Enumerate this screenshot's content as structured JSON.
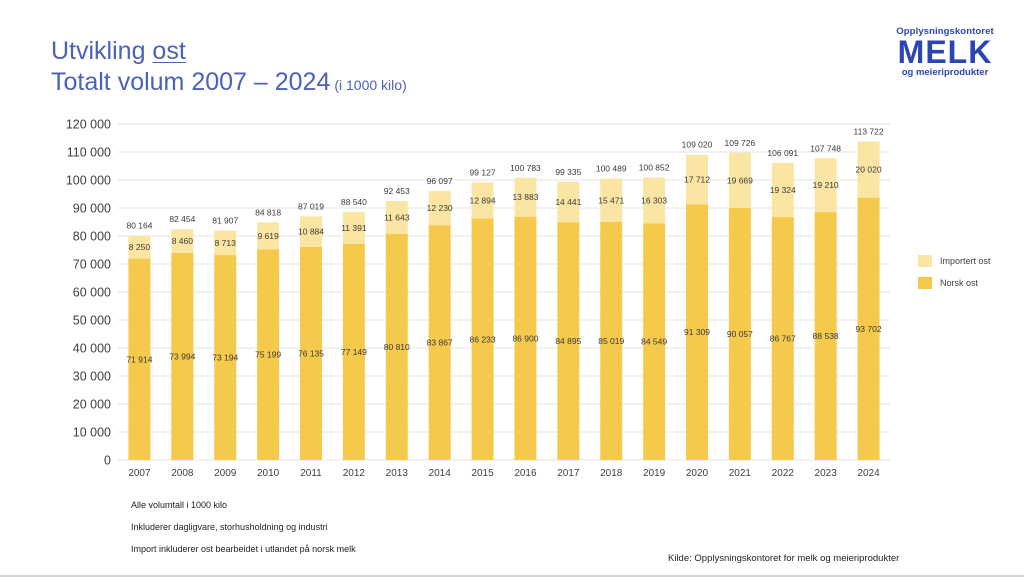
{
  "header": {
    "title_line1_prefix": "Utvikling ",
    "title_line1_underlined": "ost",
    "title_line2": "Totalt volum 2007 – 2024",
    "title_unit": "(i 1000 kilo)"
  },
  "logo": {
    "top": "Opplysningskontoret",
    "main": "MELK",
    "bottom": "og meieriprodukter"
  },
  "colors": {
    "title": "#4a62b8",
    "logo": "#2b46b3",
    "norsk": "#f5c94b",
    "importert": "#fbe5a3",
    "grid": "#e3e3e3",
    "text": "#404040"
  },
  "legend": {
    "items": [
      {
        "label": "Importert ost",
        "color": "#fbe5a3"
      },
      {
        "label": "Norsk ost",
        "color": "#f5c94b"
      }
    ]
  },
  "notes": [
    "Alle volumtall i 1000 kilo",
    "Inkluderer dagligvare, storhusholdning og industri",
    "Import inkluderer ost bearbeidet i utlandet på norsk melk"
  ],
  "source": "Kilde: Opplysningskontoret for melk og meieriprodukter",
  "chart_data": {
    "type": "bar",
    "stacked": true,
    "title": "Utvikling ost – Totalt volum 2007 – 2024 (i 1000 kilo)",
    "xlabel": "",
    "ylabel": "",
    "ylim": [
      0,
      120000
    ],
    "yticks": [
      0,
      10000,
      20000,
      30000,
      40000,
      50000,
      60000,
      70000,
      80000,
      90000,
      100000,
      110000,
      120000
    ],
    "ytick_labels": [
      "0",
      "10 000",
      "20 000",
      "30 000",
      "40 000",
      "50 000",
      "60 000",
      "70 000",
      "80 000",
      "90 000",
      "100 000",
      "110 000",
      "120 000"
    ],
    "grid": true,
    "legend_position": "right",
    "categories": [
      "2007",
      "2008",
      "2009",
      "2010",
      "2011",
      "2012",
      "2013",
      "2014",
      "2015",
      "2016",
      "2017",
      "2018",
      "2019",
      "2020",
      "2021",
      "2022",
      "2023",
      "2024"
    ],
    "series": [
      {
        "name": "Norsk ost",
        "color": "#f5c94b",
        "values": [
          71914,
          73994,
          73194,
          75199,
          76135,
          77149,
          80810,
          83867,
          86233,
          86900,
          84895,
          85019,
          84549,
          91309,
          90057,
          86767,
          88538,
          93702
        ],
        "labels": [
          "71 914",
          "73 994",
          "73 194",
          "75 199",
          "76 135",
          "77 149",
          "80 810",
          "83 867",
          "86 233",
          "86 900",
          "84 895",
          "85 019",
          "84 549",
          "91 309",
          "90 057",
          "86 767",
          "88 538",
          "93 702"
        ]
      },
      {
        "name": "Importert ost",
        "color": "#fbe5a3",
        "values": [
          8250,
          8460,
          8713,
          9619,
          10884,
          11391,
          11643,
          12230,
          12894,
          13883,
          14441,
          15471,
          16303,
          17712,
          19669,
          19324,
          19210,
          20020
        ],
        "labels": [
          "8 250",
          "8 460",
          "8 713",
          "9 619",
          "10 884",
          "11 391",
          "11 643",
          "12 230",
          "12 894",
          "13 883",
          "14 441",
          "15 471",
          "16 303",
          "17 712",
          "19 669",
          "19 324",
          "19 210",
          "20 020"
        ]
      }
    ],
    "totals": [
      80164,
      82454,
      81907,
      84818,
      87019,
      88540,
      92453,
      96097,
      99127,
      100783,
      99335,
      100489,
      100852,
      109020,
      109726,
      106091,
      107748,
      113722
    ],
    "total_labels": [
      "80 164",
      "82 454",
      "81 907",
      "84 818",
      "87 019",
      "88 540",
      "92 453",
      "96 097",
      "99 127",
      "100 783",
      "99 335",
      "100 489",
      "100 852",
      "109 020",
      "109 726",
      "106 091",
      "107 748",
      "113 722"
    ]
  }
}
